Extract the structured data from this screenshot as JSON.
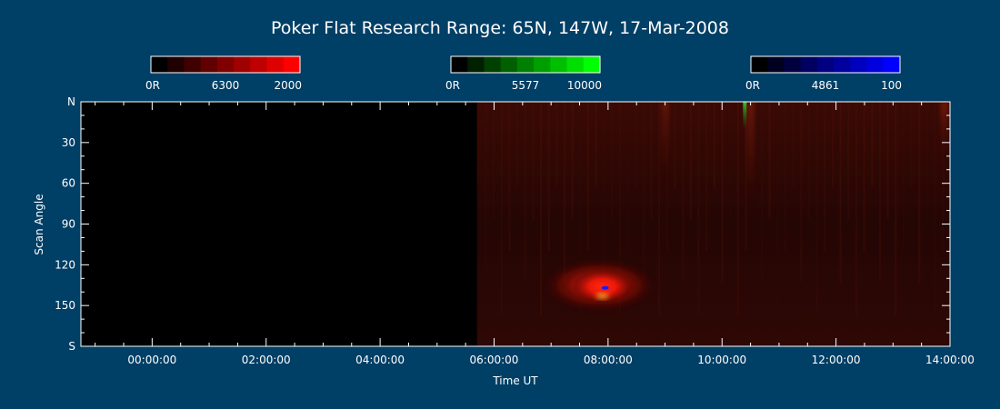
{
  "chart_data": {
    "type": "heatmap",
    "title": "Poker Flat Research Range: 65N, 147W, 17-Mar-2008",
    "xlabel": "Time UT",
    "ylabel": "Scan Angle",
    "x_ticks": [
      "00:00:00",
      "02:00:00",
      "04:00:00",
      "06:00:00",
      "08:00:00",
      "10:00:00",
      "12:00:00",
      "14:00:00"
    ],
    "x_range_hours": [
      -1.25,
      14.0
    ],
    "y_ticks": [
      "N",
      "30",
      "60",
      "90",
      "120",
      "150",
      "S"
    ],
    "y_range_deg": [
      0,
      180
    ],
    "grid": false,
    "data_start_hour": 5.7,
    "colorbars": [
      {
        "name": "6300",
        "min_label": "0R",
        "mid_label": "6300",
        "max_label": "2000",
        "max_color": "#ff0000",
        "channel": "red"
      },
      {
        "name": "5577",
        "min_label": "0R",
        "mid_label": "5577",
        "max_label": "10000",
        "max_color": "#00ff00",
        "channel": "green"
      },
      {
        "name": "4861",
        "min_label": "0R",
        "mid_label": "4861",
        "max_label": "100",
        "max_color": "#0000ff",
        "channel": "blue"
      }
    ],
    "features": [
      {
        "kind": "diffuse_red_glow",
        "x_hour": [
          5.7,
          14.0
        ],
        "y_deg": [
          0,
          180
        ],
        "intensity": 0.22
      },
      {
        "kind": "red_aurora_patch",
        "x_hour": [
          7.0,
          8.7
        ],
        "y_deg": [
          118,
          152
        ],
        "peak_x_hour": 7.9,
        "peak_y_deg": 136,
        "intensity": 1.0
      },
      {
        "kind": "green_streak",
        "x_hour": 10.4,
        "y_deg": [
          0,
          20
        ],
        "intensity": 0.8
      },
      {
        "kind": "red_ray",
        "x_hour": 10.5,
        "y_deg": [
          0,
          80
        ],
        "intensity": 0.45
      },
      {
        "kind": "red_ray",
        "x_hour": 9.0,
        "y_deg": [
          0,
          60
        ],
        "intensity": 0.35
      },
      {
        "kind": "red_ray",
        "x_hour": 13.9,
        "y_deg": [
          0,
          40
        ],
        "intensity": 0.5
      },
      {
        "kind": "blue_dot",
        "x_hour": 7.95,
        "y_deg": 137,
        "intensity": 1.0
      }
    ]
  }
}
